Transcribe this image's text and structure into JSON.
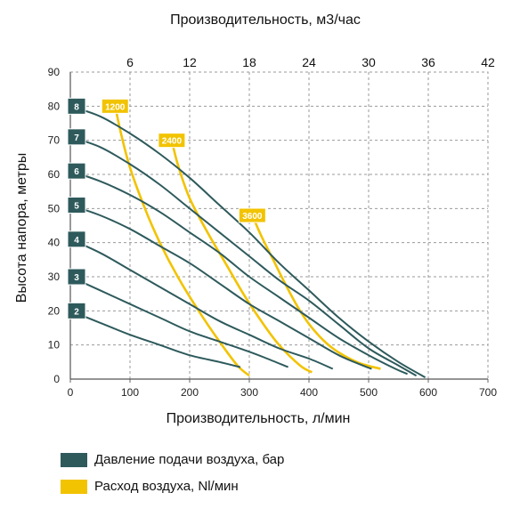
{
  "chart_data": {
    "type": "line",
    "top_axis_label": "Производительность, м3/час",
    "xlabel": "Производительность, л/мин",
    "ylabel": "Высота напора, метры",
    "xlim": [
      0,
      700
    ],
    "ylim": [
      0,
      90
    ],
    "x_ticks": [
      "0",
      "100",
      "200",
      "300",
      "400",
      "500",
      "600",
      "700"
    ],
    "y_ticks": [
      "0",
      "10",
      "20",
      "30",
      "40",
      "50",
      "60",
      "70",
      "80",
      "90"
    ],
    "top_ticks": [
      "6",
      "12",
      "18",
      "24",
      "30",
      "36",
      "42"
    ],
    "grid": true,
    "colors": {
      "pressure": "#2e5a5c",
      "air": "#f2c300",
      "grid": "#9a9a9a"
    },
    "legend": [
      {
        "label": "Давление подачи воздуха, бар",
        "color": "#2e5a5c"
      },
      {
        "label": "Расход воздуха, Nl/мин",
        "color": "#f2c300"
      }
    ],
    "pressure_series": [
      {
        "name": "8",
        "points": [
          [
            0,
            80
          ],
          [
            50,
            77
          ],
          [
            100,
            72
          ],
          [
            150,
            66
          ],
          [
            200,
            59
          ],
          [
            250,
            51
          ],
          [
            300,
            43
          ],
          [
            350,
            34
          ],
          [
            400,
            26
          ],
          [
            450,
            18
          ],
          [
            500,
            11
          ],
          [
            550,
            5
          ],
          [
            595,
            0.5
          ]
        ]
      },
      {
        "name": "7",
        "points": [
          [
            0,
            71
          ],
          [
            50,
            68
          ],
          [
            100,
            63
          ],
          [
            150,
            57
          ],
          [
            200,
            50
          ],
          [
            250,
            43
          ],
          [
            300,
            36
          ],
          [
            350,
            29
          ],
          [
            400,
            23
          ],
          [
            450,
            16
          ],
          [
            500,
            9
          ],
          [
            550,
            4
          ],
          [
            580,
            1
          ]
        ]
      },
      {
        "name": "6",
        "points": [
          [
            0,
            61
          ],
          [
            50,
            58
          ],
          [
            100,
            54
          ],
          [
            150,
            49
          ],
          [
            200,
            43
          ],
          [
            250,
            37
          ],
          [
            300,
            30
          ],
          [
            350,
            24
          ],
          [
            400,
            18
          ],
          [
            450,
            12
          ],
          [
            500,
            7
          ],
          [
            545,
            3
          ],
          [
            565,
            1.5
          ]
        ]
      },
      {
        "name": "5",
        "points": [
          [
            0,
            51
          ],
          [
            50,
            48
          ],
          [
            100,
            44
          ],
          [
            150,
            39
          ],
          [
            200,
            34
          ],
          [
            250,
            28
          ],
          [
            300,
            22
          ],
          [
            350,
            17
          ],
          [
            400,
            12
          ],
          [
            450,
            7
          ],
          [
            490,
            4
          ],
          [
            505,
            3
          ]
        ]
      },
      {
        "name": "4",
        "points": [
          [
            0,
            41
          ],
          [
            50,
            37
          ],
          [
            100,
            32
          ],
          [
            150,
            27
          ],
          [
            200,
            22
          ],
          [
            250,
            17
          ],
          [
            300,
            13
          ],
          [
            350,
            9
          ],
          [
            400,
            6
          ],
          [
            440,
            3
          ]
        ]
      },
      {
        "name": "3",
        "points": [
          [
            0,
            30
          ],
          [
            50,
            26
          ],
          [
            100,
            22
          ],
          [
            150,
            18
          ],
          [
            200,
            14
          ],
          [
            250,
            11
          ],
          [
            300,
            8
          ],
          [
            330,
            6
          ],
          [
            365,
            3.5
          ]
        ]
      },
      {
        "name": "2",
        "points": [
          [
            0,
            20
          ],
          [
            50,
            16.5
          ],
          [
            100,
            13
          ],
          [
            150,
            10
          ],
          [
            200,
            7
          ],
          [
            250,
            5
          ],
          [
            285,
            3.5
          ]
        ]
      }
    ],
    "air_series": [
      {
        "name": "1200",
        "points": [
          [
            75,
            80
          ],
          [
            85,
            72
          ],
          [
            100,
            62
          ],
          [
            125,
            50
          ],
          [
            150,
            40
          ],
          [
            180,
            30
          ],
          [
            215,
            20
          ],
          [
            250,
            11
          ],
          [
            280,
            4
          ],
          [
            300,
            1
          ]
        ]
      },
      {
        "name": "2400",
        "points": [
          [
            170,
            70
          ],
          [
            180,
            63
          ],
          [
            200,
            53
          ],
          [
            230,
            43
          ],
          [
            260,
            34
          ],
          [
            290,
            25
          ],
          [
            320,
            17
          ],
          [
            350,
            10
          ],
          [
            385,
            4
          ],
          [
            405,
            2
          ]
        ]
      },
      {
        "name": "3600",
        "points": [
          [
            305,
            48
          ],
          [
            320,
            42
          ],
          [
            340,
            35
          ],
          [
            360,
            28
          ],
          [
            385,
            20
          ],
          [
            410,
            14
          ],
          [
            440,
            9
          ],
          [
            480,
            5
          ],
          [
            520,
            3
          ]
        ]
      }
    ]
  }
}
